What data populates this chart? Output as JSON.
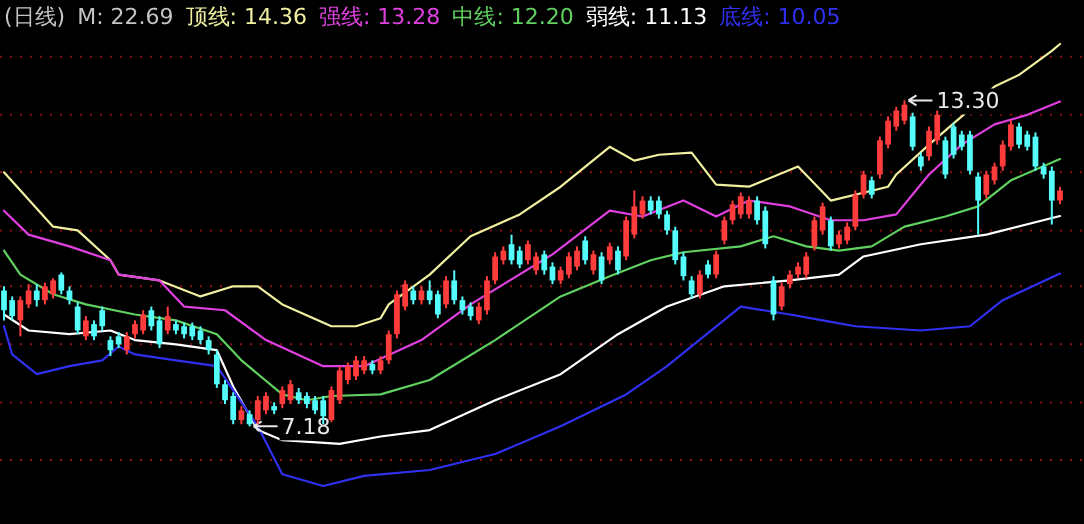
{
  "chart_data": {
    "type": "candlestick",
    "title": "(日线)",
    "subtitle": "M: 22.69",
    "categories": [
      null,
      null,
      null,
      null,
      null,
      null,
      null,
      null,
      null,
      null,
      null,
      null,
      null,
      null,
      null,
      null,
      null,
      null,
      null,
      null,
      null,
      null,
      null,
      null,
      null,
      null,
      null,
      null,
      null,
      null,
      null,
      null,
      null,
      null,
      null,
      null,
      null,
      null,
      null,
      null,
      null,
      null,
      null,
      null,
      null,
      null,
      null,
      null,
      null,
      null,
      null,
      null,
      null,
      null,
      null,
      null,
      null,
      null,
      null,
      null,
      null,
      null,
      null,
      null,
      null,
      null,
      null,
      null,
      null,
      null,
      null,
      null,
      null,
      null,
      null,
      null,
      null,
      null,
      null,
      null,
      null,
      null,
      null,
      null,
      null,
      null,
      null,
      null,
      null,
      null,
      null,
      null,
      null,
      null,
      null,
      null,
      null,
      null,
      null,
      null,
      null,
      null,
      null,
      null,
      null,
      null,
      null,
      null,
      null,
      null,
      null,
      null,
      null,
      null,
      null,
      null,
      null,
      null,
      null,
      null,
      null,
      null,
      null,
      null,
      null,
      null,
      null,
      null,
      null,
      null
    ],
    "ohlc": [
      [
        9.73,
        9.81,
        9.17,
        9.36
      ],
      [
        9.55,
        9.62,
        9.17,
        9.25
      ],
      [
        9.17,
        9.62,
        8.87,
        9.55
      ],
      [
        9.47,
        9.85,
        9.4,
        9.73
      ],
      [
        9.73,
        9.85,
        9.43,
        9.55
      ],
      [
        9.55,
        9.88,
        9.47,
        9.81
      ],
      [
        9.66,
        9.96,
        9.58,
        9.92
      ],
      [
        10.03,
        10.07,
        9.66,
        9.73
      ],
      [
        9.73,
        9.81,
        9.47,
        9.55
      ],
      [
        9.43,
        9.51,
        8.91,
        8.98
      ],
      [
        8.87,
        9.25,
        8.8,
        9.17
      ],
      [
        9.1,
        9.17,
        8.8,
        8.87
      ],
      [
        9.36,
        9.43,
        8.98,
        9.06
      ],
      [
        8.8,
        8.87,
        8.5,
        8.61
      ],
      [
        8.87,
        8.95,
        8.65,
        8.72
      ],
      [
        8.61,
        8.95,
        8.53,
        8.87
      ],
      [
        8.91,
        9.17,
        8.83,
        9.1
      ],
      [
        8.98,
        9.36,
        8.91,
        9.28
      ],
      [
        9.36,
        9.43,
        8.98,
        9.06
      ],
      [
        9.17,
        9.25,
        8.65,
        8.72
      ],
      [
        8.98,
        9.43,
        8.91,
        9.25
      ],
      [
        9.1,
        9.17,
        8.91,
        8.98
      ],
      [
        9.06,
        9.13,
        8.83,
        8.91
      ],
      [
        9.06,
        9.13,
        8.8,
        8.87
      ],
      [
        8.98,
        9.06,
        8.72,
        8.8
      ],
      [
        8.8,
        8.87,
        8.53,
        8.61
      ],
      [
        8.53,
        8.61,
        7.9,
        7.97
      ],
      [
        7.97,
        8.05,
        7.6,
        7.67
      ],
      [
        7.75,
        7.82,
        7.22,
        7.3
      ],
      [
        7.3,
        7.56,
        7.22,
        7.48
      ],
      [
        7.41,
        7.48,
        7.18,
        7.22
      ],
      [
        7.3,
        7.75,
        7.22,
        7.67
      ],
      [
        7.48,
        7.82,
        7.41,
        7.75
      ],
      [
        7.56,
        7.63,
        7.41,
        7.48
      ],
      [
        7.6,
        7.93,
        7.52,
        7.86
      ],
      [
        7.67,
        8.05,
        7.6,
        7.97
      ],
      [
        7.82,
        7.9,
        7.6,
        7.67
      ],
      [
        7.75,
        7.82,
        7.52,
        7.6
      ],
      [
        7.67,
        7.75,
        7.41,
        7.48
      ],
      [
        7.67,
        7.75,
        7.22,
        7.37
      ],
      [
        7.3,
        7.93,
        7.26,
        7.86
      ],
      [
        7.67,
        8.31,
        7.6,
        8.23
      ],
      [
        8.05,
        8.38,
        7.97,
        8.31
      ],
      [
        8.12,
        8.5,
        8.05,
        8.42
      ],
      [
        8.23,
        8.5,
        8.16,
        8.42
      ],
      [
        8.35,
        8.42,
        8.16,
        8.23
      ],
      [
        8.23,
        8.5,
        8.16,
        8.42
      ],
      [
        8.42,
        8.98,
        8.35,
        8.91
      ],
      [
        8.91,
        9.73,
        8.83,
        9.66
      ],
      [
        9.43,
        9.92,
        9.36,
        9.85
      ],
      [
        9.73,
        9.81,
        9.47,
        9.55
      ],
      [
        9.55,
        9.81,
        9.47,
        9.73
      ],
      [
        9.73,
        9.92,
        9.47,
        9.55
      ],
      [
        9.66,
        9.73,
        9.21,
        9.28
      ],
      [
        9.47,
        10.0,
        9.4,
        9.92
      ],
      [
        9.92,
        10.11,
        9.47,
        9.55
      ],
      [
        9.55,
        9.62,
        9.28,
        9.36
      ],
      [
        9.43,
        9.51,
        9.17,
        9.25
      ],
      [
        9.17,
        9.51,
        9.1,
        9.43
      ],
      [
        9.36,
        10.0,
        9.28,
        9.92
      ],
      [
        9.92,
        10.45,
        9.85,
        10.37
      ],
      [
        10.3,
        10.56,
        10.22,
        10.48
      ],
      [
        10.6,
        10.78,
        10.22,
        10.3
      ],
      [
        10.48,
        10.56,
        10.15,
        10.22
      ],
      [
        10.3,
        10.67,
        10.22,
        10.6
      ],
      [
        10.11,
        10.45,
        10.03,
        10.37
      ],
      [
        10.41,
        10.48,
        10.03,
        10.11
      ],
      [
        10.18,
        10.26,
        9.85,
        9.92
      ],
      [
        9.92,
        10.18,
        9.85,
        10.11
      ],
      [
        10.03,
        10.45,
        9.96,
        10.37
      ],
      [
        10.18,
        10.56,
        10.11,
        10.48
      ],
      [
        10.67,
        10.75,
        10.22,
        10.3
      ],
      [
        10.11,
        10.48,
        10.03,
        10.41
      ],
      [
        10.37,
        10.45,
        9.85,
        9.92
      ],
      [
        10.3,
        10.63,
        10.22,
        10.56
      ],
      [
        10.48,
        10.56,
        10.03,
        10.11
      ],
      [
        10.37,
        11.12,
        10.3,
        11.05
      ],
      [
        10.78,
        11.61,
        10.71,
        11.31
      ],
      [
        11.16,
        11.5,
        11.08,
        11.42
      ],
      [
        11.42,
        11.5,
        11.16,
        11.23
      ],
      [
        11.42,
        11.5,
        11.08,
        11.16
      ],
      [
        11.16,
        11.23,
        10.78,
        10.86
      ],
      [
        10.86,
        10.93,
        10.22,
        10.3
      ],
      [
        10.37,
        10.45,
        9.92,
        10.0
      ],
      [
        9.92,
        10.0,
        9.58,
        9.66
      ],
      [
        9.66,
        10.11,
        9.58,
        10.03
      ],
      [
        10.22,
        10.3,
        9.96,
        10.03
      ],
      [
        10.03,
        10.48,
        9.96,
        10.41
      ],
      [
        10.67,
        11.12,
        10.6,
        11.05
      ],
      [
        11.05,
        11.42,
        10.97,
        11.35
      ],
      [
        11.16,
        11.57,
        11.08,
        11.5
      ],
      [
        11.16,
        11.5,
        11.08,
        11.42
      ],
      [
        11.42,
        11.5,
        10.97,
        11.05
      ],
      [
        11.23,
        11.31,
        10.52,
        10.6
      ],
      [
        9.92,
        10.0,
        9.17,
        9.28
      ],
      [
        9.43,
        9.88,
        9.36,
        9.81
      ],
      [
        9.85,
        10.11,
        9.77,
        10.03
      ],
      [
        10.03,
        10.26,
        9.96,
        10.18
      ],
      [
        10.03,
        10.45,
        9.96,
        10.37
      ],
      [
        10.56,
        11.12,
        10.48,
        11.05
      ],
      [
        10.86,
        11.38,
        10.78,
        11.31
      ],
      [
        11.05,
        11.12,
        10.48,
        10.56
      ],
      [
        10.6,
        10.86,
        10.52,
        10.78
      ],
      [
        10.67,
        11.01,
        10.6,
        10.93
      ],
      [
        10.93,
        11.61,
        10.86,
        11.53
      ],
      [
        11.53,
        11.98,
        11.46,
        11.91
      ],
      [
        11.8,
        11.87,
        11.46,
        11.53
      ],
      [
        11.91,
        12.62,
        11.83,
        12.55
      ],
      [
        12.47,
        13.0,
        12.4,
        12.92
      ],
      [
        12.81,
        13.18,
        12.73,
        13.11
      ],
      [
        12.92,
        13.3,
        12.85,
        13.22
      ],
      [
        13.0,
        13.07,
        12.36,
        12.43
      ],
      [
        12.25,
        12.32,
        11.98,
        12.06
      ],
      [
        12.25,
        12.81,
        12.17,
        12.73
      ],
      [
        12.55,
        13.11,
        12.47,
        13.03
      ],
      [
        12.55,
        12.62,
        11.83,
        11.91
      ],
      [
        12.81,
        12.88,
        12.21,
        12.28
      ],
      [
        12.66,
        12.73,
        12.36,
        12.43
      ],
      [
        12.66,
        12.73,
        11.91,
        11.98
      ],
      [
        11.87,
        11.95,
        10.78,
        11.42
      ],
      [
        11.53,
        11.98,
        11.46,
        11.91
      ],
      [
        11.8,
        12.13,
        11.72,
        12.06
      ],
      [
        12.06,
        12.55,
        11.98,
        12.47
      ],
      [
        12.43,
        12.92,
        12.36,
        12.85
      ],
      [
        12.81,
        12.88,
        12.4,
        12.47
      ],
      [
        12.66,
        12.73,
        12.36,
        12.43
      ],
      [
        12.62,
        12.7,
        11.98,
        12.06
      ],
      [
        12.06,
        12.13,
        11.83,
        11.91
      ],
      [
        11.98,
        12.06,
        10.97,
        11.42
      ],
      [
        11.42,
        11.68,
        11.35,
        11.61
      ]
    ],
    "colors": [
      "#54fcfc",
      "#54fcfc",
      "#ff3c3c",
      "#ff3c3c",
      "#54fcfc",
      "#ff3c3c",
      "#ff3c3c",
      "#54fcfc",
      "#54fcfc",
      "#54fcfc",
      "#ff3c3c",
      "#54fcfc",
      "#54fcfc",
      "#54fcfc",
      "#54fcfc",
      "#ff3c3c",
      "#ff3c3c",
      "#ff3c3c",
      "#54fcfc",
      "#54fcfc",
      "#ff3c3c",
      "#54fcfc",
      "#54fcfc",
      "#54fcfc",
      "#54fcfc",
      "#54fcfc",
      "#54fcfc",
      "#54fcfc",
      "#54fcfc",
      "#ff3c3c",
      "#54fcfc",
      "#ff3c3c",
      "#ff3c3c",
      "#54fcfc",
      "#ff3c3c",
      "#ff3c3c",
      "#54fcfc",
      "#54fcfc",
      "#54fcfc",
      "#54fcfc",
      "#ff3c3c",
      "#ff3c3c",
      "#ff3c3c",
      "#ff3c3c",
      "#ff3c3c",
      "#54fcfc",
      "#ff3c3c",
      "#ff3c3c",
      "#ff3c3c",
      "#ff3c3c",
      "#54fcfc",
      "#ff3c3c",
      "#54fcfc",
      "#54fcfc",
      "#ff3c3c",
      "#54fcfc",
      "#54fcfc",
      "#54fcfc",
      "#ff3c3c",
      "#ff3c3c",
      "#ff3c3c",
      "#ff3c3c",
      "#54fcfc",
      "#54fcfc",
      "#ff3c3c",
      "#ff3c3c",
      "#54fcfc",
      "#54fcfc",
      "#ff3c3c",
      "#ff3c3c",
      "#ff3c3c",
      "#54fcfc",
      "#ff3c3c",
      "#54fcfc",
      "#ff3c3c",
      "#54fcfc",
      "#ff3c3c",
      "#ff3c3c",
      "#ff3c3c",
      "#54fcfc",
      "#54fcfc",
      "#54fcfc",
      "#54fcfc",
      "#54fcfc",
      "#54fcfc",
      "#ff3c3c",
      "#54fcfc",
      "#ff3c3c",
      "#ff3c3c",
      "#ff3c3c",
      "#ff3c3c",
      "#ff3c3c",
      "#54fcfc",
      "#54fcfc",
      "#54fcfc",
      "#ff3c3c",
      "#ff3c3c",
      "#ff3c3c",
      "#ff3c3c",
      "#ff3c3c",
      "#ff3c3c",
      "#54fcfc",
      "#ff3c3c",
      "#ff3c3c",
      "#ff3c3c",
      "#ff3c3c",
      "#54fcfc",
      "#ff3c3c",
      "#ff3c3c",
      "#ff3c3c",
      "#ff3c3c",
      "#54fcfc",
      "#54fcfc",
      "#ff3c3c",
      "#ff3c3c",
      "#54fcfc",
      "#54fcfc",
      "#54fcfc",
      "#54fcfc",
      "#54fcfc",
      "#ff3c3c",
      "#ff3c3c",
      "#ff3c3c",
      "#ff3c3c",
      "#54fcfc",
      "#54fcfc",
      "#54fcfc",
      "#54fcfc",
      "#54fcfc",
      "#ff3c3c"
    ],
    "series": [
      {
        "type": "line",
        "name": "顶线: 14.36",
        "color": "#f0f0a0",
        "values": [
          11.95,
          null,
          null,
          null,
          null,
          null,
          10.93,
          null,
          null,
          10.86,
          null,
          null,
          null,
          10.3,
          10.03,
          null,
          null,
          null,
          null,
          9.92,
          null,
          null,
          null,
          null,
          9.62,
          null,
          null,
          null,
          9.81,
          null,
          null,
          9.81,
          null,
          null,
          9.47,
          null,
          null,
          null,
          null,
          null,
          9.06,
          null,
          null,
          9.06,
          null,
          null,
          9.21,
          9.47,
          null,
          null,
          null,
          null,
          10.03,
          null,
          null,
          null,
          null,
          10.75,
          null,
          null,
          null,
          null,
          null,
          11.16,
          null,
          null,
          null,
          null,
          11.68,
          null,
          null,
          null,
          null,
          null,
          12.43,
          null,
          null,
          12.17,
          null,
          null,
          12.28,
          null,
          null,
          null,
          12.32,
          null,
          null,
          11.72,
          null,
          null,
          null,
          11.68,
          null,
          null,
          null,
          null,
          null,
          12.06,
          null,
          null,
          null,
          11.42,
          null,
          null,
          null,
          null,
          null,
          null,
          11.68,
          11.91,
          null,
          null,
          null,
          12.47,
          null,
          null,
          null,
          13.0,
          null,
          null,
          null,
          13.56,
          null,
          null,
          13.78,
          null,
          null,
          null,
          14.23,
          14.36
        ]
      },
      {
        "type": "line",
        "name": "强线: 13.28",
        "color": "#e040e0",
        "values": [
          11.23,
          null,
          null,
          10.78,
          null,
          null,
          null,
          null,
          10.56,
          null,
          null,
          null,
          null,
          10.3,
          10.03,
          null,
          null,
          null,
          null,
          9.92,
          null,
          null,
          9.43,
          null,
          null,
          null,
          null,
          9.36,
          null,
          null,
          null,
          null,
          8.8,
          null,
          null,
          null,
          null,
          null,
          null,
          8.31,
          null,
          null,
          null,
          null,
          8.31,
          null,
          null,
          null,
          null,
          null,
          null,
          8.8,
          null,
          null,
          null,
          null,
          null,
          9.47,
          null,
          null,
          null,
          null,
          null,
          null,
          null,
          null,
          null,
          10.41,
          null,
          null,
          null,
          null,
          null,
          null,
          11.23,
          null,
          null,
          null,
          11.12,
          null,
          null,
          null,
          null,
          11.42,
          null,
          null,
          null,
          11.12,
          null,
          null,
          null,
          11.42,
          null,
          null,
          null,
          null,
          11.31,
          null,
          null,
          null,
          null,
          11.05,
          null,
          null,
          null,
          11.05,
          null,
          null,
          null,
          11.16,
          null,
          null,
          null,
          11.91,
          null,
          null,
          null,
          12.47,
          null,
          null,
          null,
          12.85,
          null,
          null,
          null,
          13.03,
          null,
          null,
          null,
          13.28
        ]
      },
      {
        "type": "line",
        "name": "中线: 12.20",
        "color": "#60d060",
        "values": [
          10.48,
          null,
          10.03,
          null,
          null,
          null,
          9.66,
          null,
          null,
          null,
          9.47,
          null,
          null,
          null,
          null,
          null,
          9.28,
          null,
          null,
          null,
          null,
          9.17,
          null,
          null,
          null,
          null,
          8.91,
          null,
          null,
          8.42,
          null,
          null,
          null,
          null,
          7.78,
          null,
          null,
          7.67,
          null,
          null,
          7.75,
          null,
          null,
          null,
          null,
          null,
          7.78,
          null,
          null,
          null,
          null,
          null,
          8.05,
          null,
          null,
          null,
          null,
          null,
          null,
          null,
          8.8,
          null,
          null,
          null,
          null,
          null,
          null,
          null,
          9.62,
          null,
          null,
          null,
          null,
          null,
          10.0,
          null,
          null,
          null,
          null,
          10.3,
          null,
          null,
          null,
          10.45,
          null,
          null,
          null,
          null,
          null,
          null,
          10.56,
          null,
          null,
          null,
          10.75,
          null,
          null,
          null,
          10.56,
          null,
          null,
          null,
          10.48,
          null,
          null,
          null,
          10.56,
          null,
          null,
          null,
          10.93,
          null,
          null,
          null,
          null,
          11.12,
          null,
          null,
          null,
          11.31,
          null,
          null,
          null,
          11.8,
          null,
          null,
          null,
          null,
          null,
          12.2
        ]
      },
      {
        "type": "line",
        "name": "弱线: 11.13",
        "color": "#ffffff",
        "values": [
          9.28,
          null,
          null,
          8.98,
          null,
          null,
          null,
          null,
          8.91,
          null,
          null,
          null,
          null,
          8.98,
          null,
          null,
          8.8,
          null,
          null,
          null,
          null,
          8.72,
          null,
          null,
          null,
          null,
          8.61,
          null,
          7.93,
          null,
          null,
          7.11,
          null,
          null,
          6.92,
          null,
          null,
          null,
          null,
          null,
          null,
          6.85,
          null,
          null,
          null,
          null,
          6.99,
          null,
          null,
          null,
          null,
          null,
          7.11,
          null,
          null,
          null,
          null,
          null,
          null,
          null,
          7.67,
          null,
          null,
          null,
          null,
          null,
          null,
          null,
          8.16,
          null,
          null,
          null,
          null,
          null,
          null,
          8.91,
          null,
          null,
          null,
          null,
          null,
          9.43,
          null,
          null,
          null,
          null,
          null,
          null,
          9.81,
          null,
          null,
          null,
          null,
          null,
          null,
          null,
          9.92,
          null,
          null,
          null,
          null,
          null,
          10.03,
          null,
          null,
          10.37,
          null,
          null,
          null,
          null,
          null,
          null,
          10.6,
          null,
          null,
          null,
          null,
          null,
          null,
          null,
          10.78,
          null,
          null,
          null,
          null,
          null,
          null,
          null,
          null,
          11.13
        ]
      },
      {
        "type": "line",
        "name": "底线: 10.05",
        "color": "#3030f0",
        "values": [
          9.06,
          8.53,
          null,
          null,
          8.16,
          null,
          null,
          null,
          8.31,
          null,
          null,
          null,
          8.42,
          null,
          8.68,
          null,
          8.53,
          null,
          null,
          null,
          null,
          8.42,
          null,
          null,
          null,
          null,
          8.31,
          null,
          null,
          null,
          null,
          7.18,
          null,
          null,
          6.28,
          null,
          null,
          null,
          null,
          6.06,
          null,
          null,
          null,
          null,
          6.25,
          null,
          null,
          null,
          null,
          null,
          null,
          null,
          6.36,
          null,
          null,
          null,
          null,
          null,
          null,
          null,
          6.66,
          null,
          null,
          null,
          null,
          null,
          null,
          null,
          7.18,
          null,
          null,
          null,
          null,
          null,
          null,
          null,
          7.78,
          null,
          null,
          null,
          null,
          8.31,
          null,
          null,
          null,
          null,
          null,
          null,
          null,
          null,
          9.43,
          null,
          null,
          null,
          null,
          null,
          9.28,
          null,
          null,
          null,
          9.17,
          null,
          null,
          null,
          9.06,
          null,
          null,
          null,
          null,
          null,
          null,
          null,
          8.98,
          null,
          null,
          null,
          null,
          null,
          9.06,
          null,
          null,
          null,
          9.55,
          null,
          null,
          null,
          null,
          null,
          null,
          10.05
        ]
      }
    ],
    "annotations": [
      {
        "text": "13.30",
        "y": 13.3
      },
      "7.18"
    ],
    "yticks": [
      {
        "value": 14.12,
        "label": null
      },
      {
        "value": 13.03,
        "label": null
      },
      {
        "value": 11.95,
        "label": null
      },
      {
        "value": 10.86,
        "label": null
      },
      {
        "value": 9.81,
        "label": null
      },
      {
        "value": 8.72,
        "label": null
      },
      {
        "value": 7.63,
        "label": null
      },
      {
        "value": 6.55,
        "label": null
      }
    ],
    "grid": "y",
    "legend": "top",
    "line_style": "solid"
  }
}
